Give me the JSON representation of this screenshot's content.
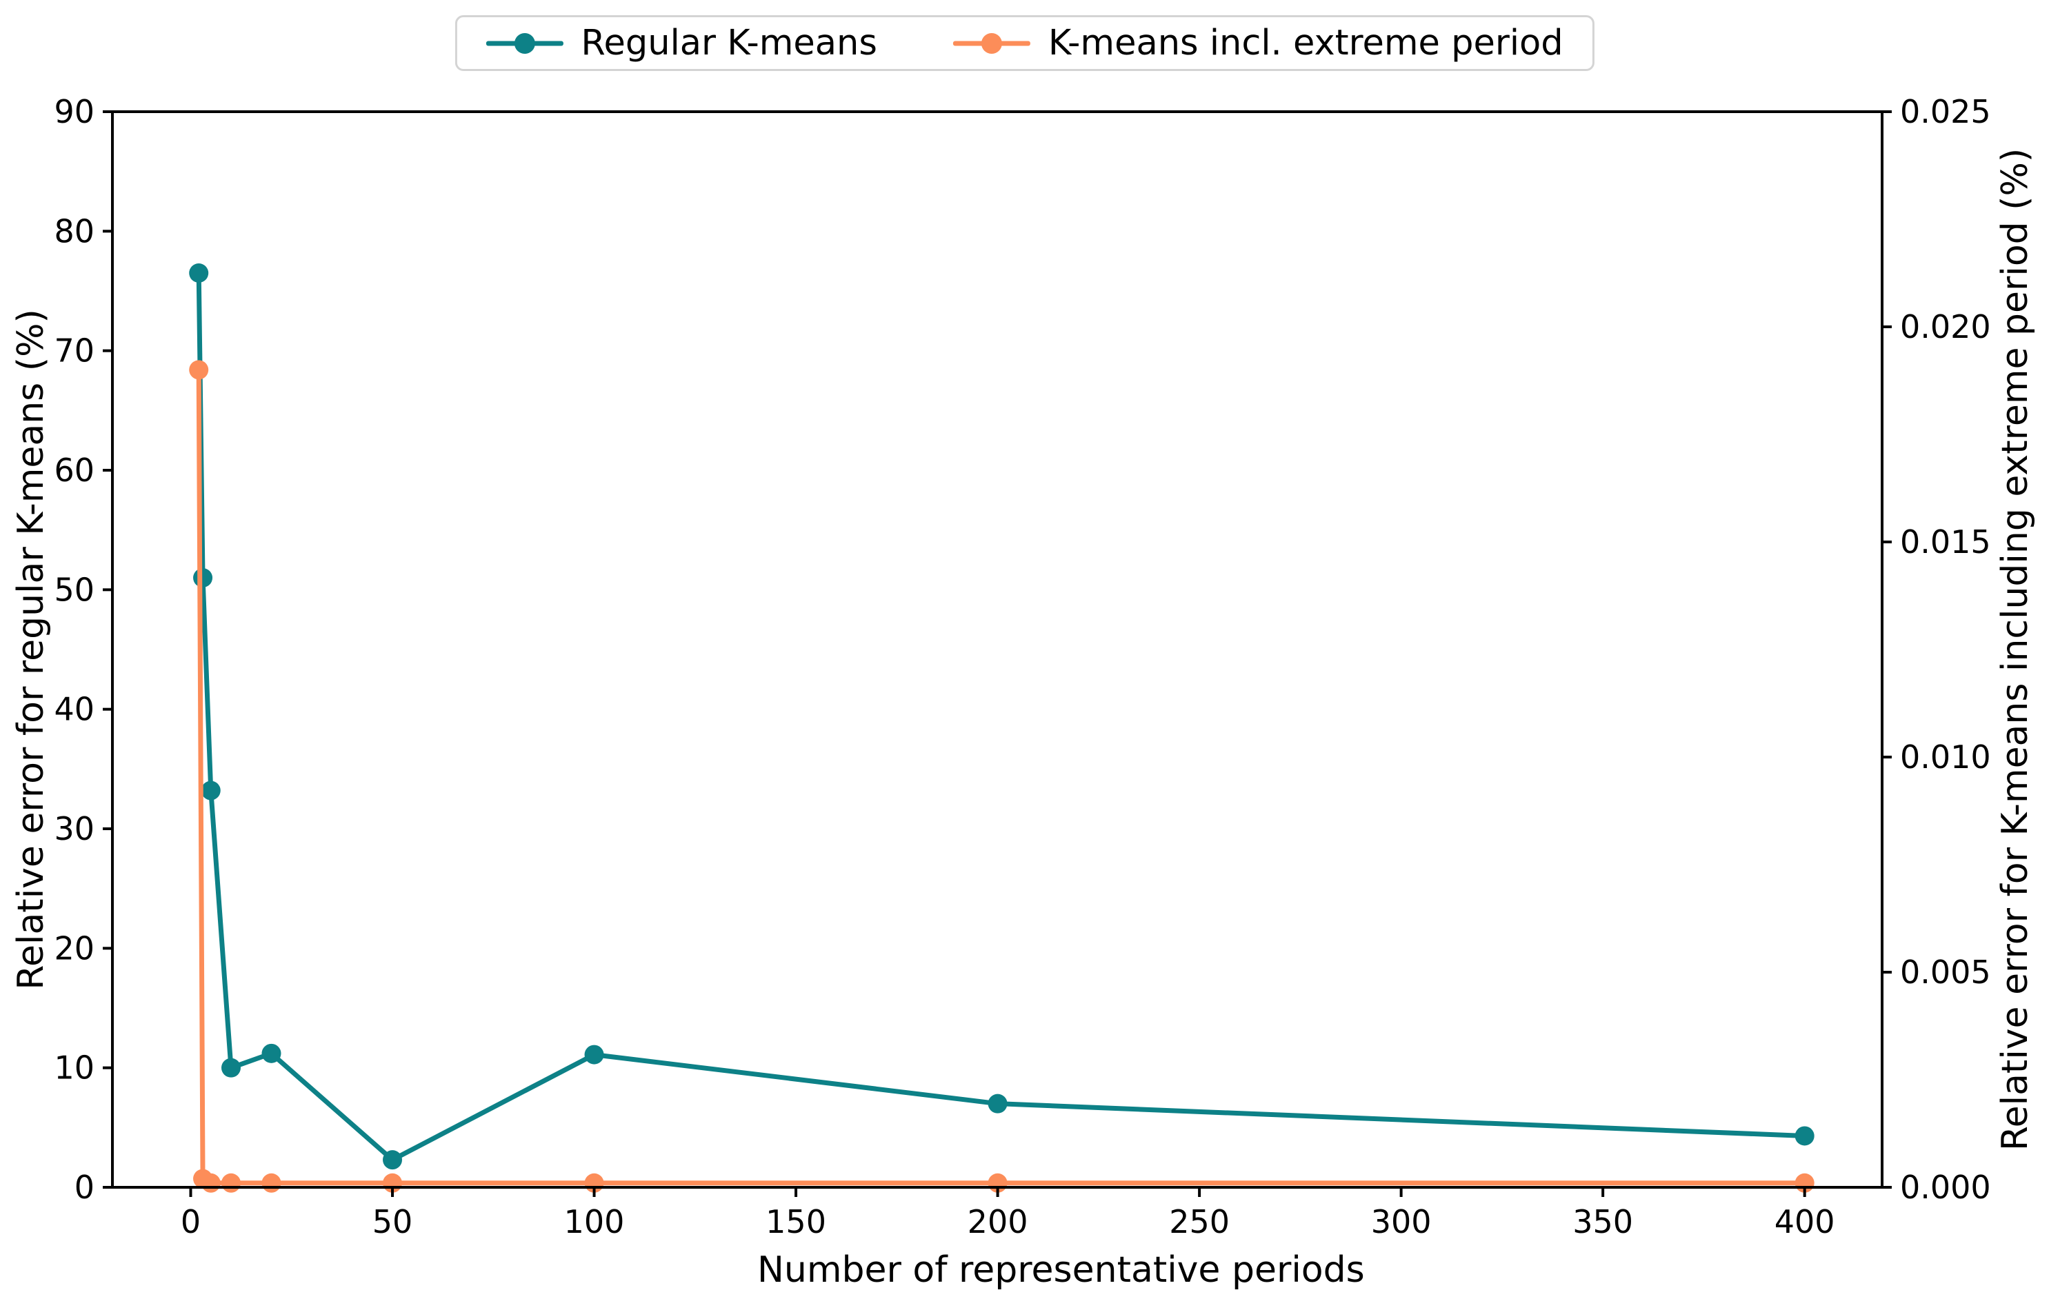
{
  "figure": {
    "background": "#ffffff",
    "spine_color": "#000000",
    "tick_label_color": "#000000"
  },
  "chart_data": {
    "type": "line",
    "title": "",
    "xlabel": "Number of representative periods",
    "ylabel_left": "Relative error for regular K-means (%)",
    "ylabel_right": "Relative error for K-means including extreme period (%)",
    "xlim": [
      -19.4,
      419.2
    ],
    "ylim_left": [
      0,
      90
    ],
    "ylim_right": [
      0,
      0.025
    ],
    "x_ticks": [
      0,
      50,
      100,
      150,
      200,
      250,
      300,
      350,
      400
    ],
    "y_ticks_left": [
      0,
      10,
      20,
      30,
      40,
      50,
      60,
      70,
      80,
      90
    ],
    "y_ticks_right": [
      "0.000",
      "0.005",
      "0.010",
      "0.015",
      "0.020",
      "0.025"
    ],
    "grid": false,
    "legend_position": "upper center, above axes",
    "series": [
      {
        "name": "Regular K-means",
        "axis": "left",
        "color": "#0d8187",
        "marker": "circle",
        "x": [
          2,
          3,
          5,
          10,
          20,
          50,
          100,
          200,
          400
        ],
        "y": [
          76.5,
          51.0,
          33.2,
          10.0,
          11.2,
          2.3,
          11.1,
          7.0,
          4.3
        ]
      },
      {
        "name": "K-means incl. extreme period",
        "axis": "right",
        "color": "#fc8d59",
        "marker": "circle",
        "x": [
          2,
          3,
          5,
          10,
          20,
          50,
          100,
          200,
          400
        ],
        "y": [
          0.019,
          0.0002,
          0.0001,
          0.0001,
          0.0001,
          0.0001,
          0.0001,
          0.0001,
          0.0001
        ]
      }
    ]
  }
}
